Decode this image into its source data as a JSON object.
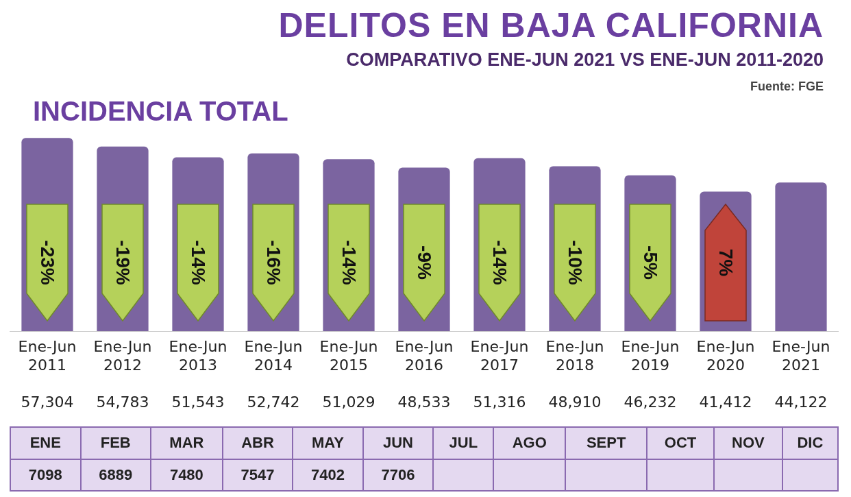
{
  "chart_data": [
    {
      "type": "bar",
      "title": "DELITOS EN BAJA CALIFORNIA",
      "subtitle": "COMPARATIVO ENE-JUN 2021 VS ENE-JUN 2011-2020",
      "annotations": [
        "Fuente: FGE",
        "INCIDENCIA TOTAL",
        "-23%",
        "-19%",
        "-14%",
        "-16%",
        "-14%",
        "-9%",
        "-14%",
        "-10%",
        "-5%",
        "7%"
      ],
      "categories": [
        "Ene-Jun 2011",
        "Ene-Jun 2012",
        "Ene-Jun 2013",
        "Ene-Jun 2014",
        "Ene-Jun 2015",
        "Ene-Jun 2016",
        "Ene-Jun 2017",
        "Ene-Jun 2018",
        "Ene-Jun 2019",
        "Ene-Jun 2020",
        "Ene-Jun 2021"
      ],
      "values": [
        57304,
        54783,
        51543,
        52742,
        51029,
        48533,
        51316,
        48910,
        46232,
        41412,
        44122
      ],
      "value_labels": [
        "57,304",
        "54,783",
        "51,543",
        "52,742",
        "51,029",
        "48,533",
        "51,316",
        "48,910",
        "46,232",
        "41,412",
        "44,122"
      ],
      "color": "#7b64a0"
    },
    {
      "type": "other",
      "categories": [
        "ENE",
        "FEB",
        "MAR",
        "ABR",
        "MAY",
        "JUN",
        "JUL",
        "AGO",
        "SEPT",
        "OCT",
        "NOV",
        "DIC"
      ],
      "values": [
        7098,
        6889,
        7480,
        7547,
        7402,
        7706,
        null,
        null,
        null,
        null,
        null,
        null
      ],
      "data_labels": true,
      "color": "#e4d9f0"
    }
  ]
}
